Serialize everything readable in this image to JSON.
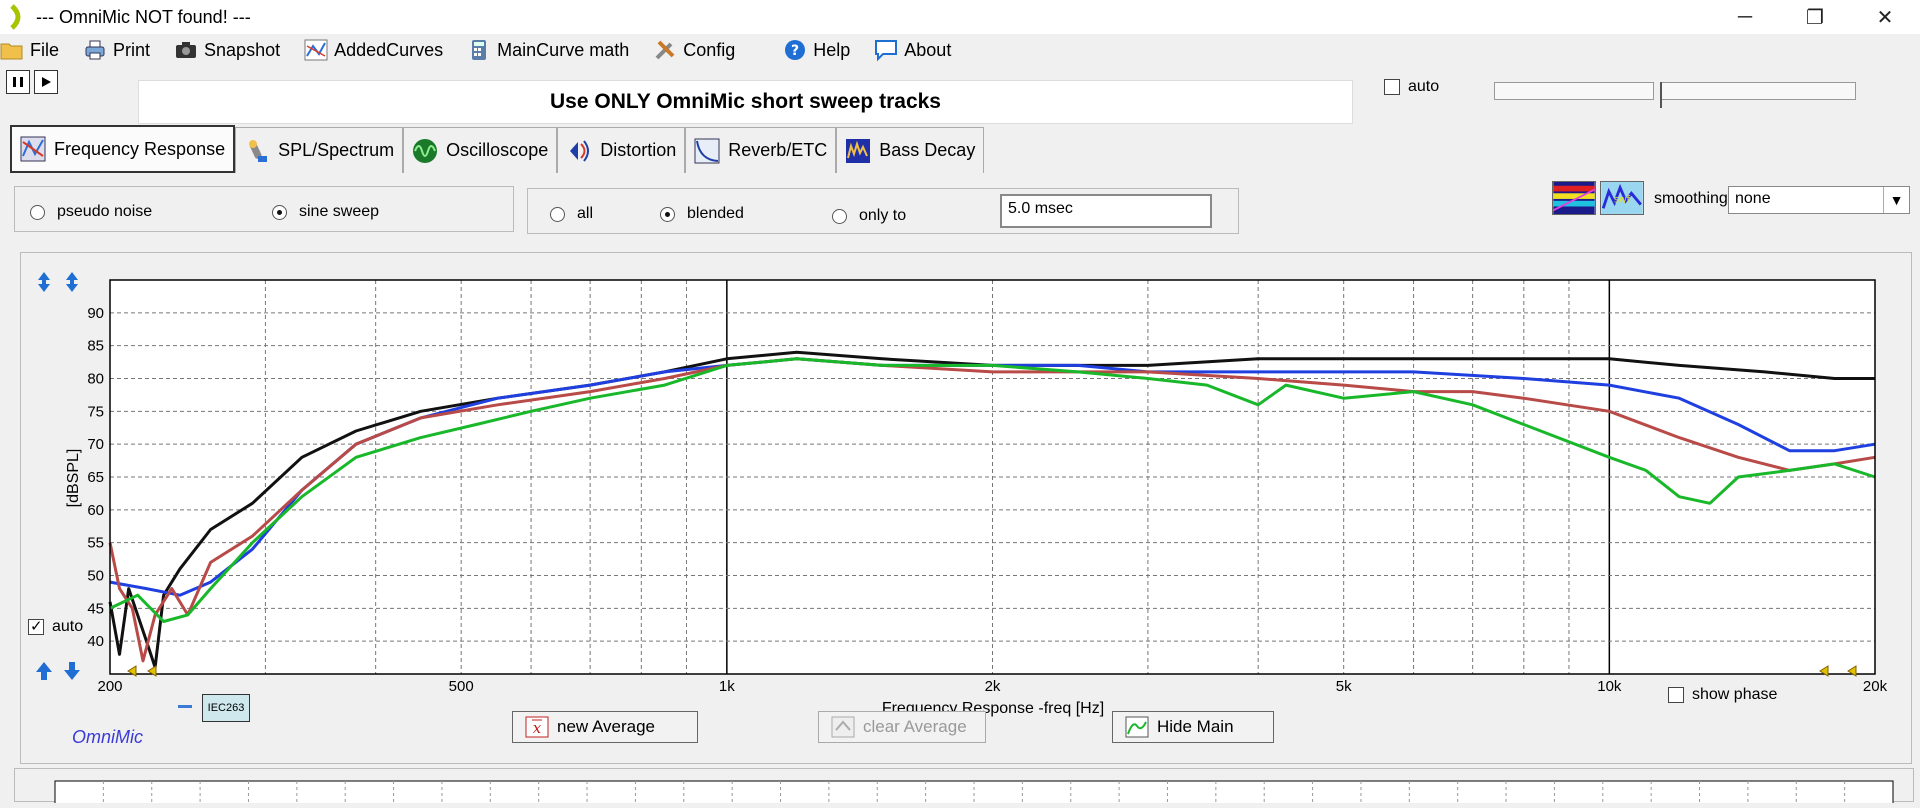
{
  "window": {
    "title": "--- OmniMic NOT found! ---",
    "minimize": "─",
    "restore": "❐",
    "close": "✕"
  },
  "menu": [
    {
      "label": "File",
      "icon": "folder-icon"
    },
    {
      "label": "Print",
      "icon": "printer-icon"
    },
    {
      "label": "Snapshot",
      "icon": "camera-icon"
    },
    {
      "label": "AddedCurves",
      "icon": "curves-icon"
    },
    {
      "label": "MainCurve math",
      "icon": "calculator-icon"
    },
    {
      "label": "Config",
      "icon": "tools-icon"
    },
    {
      "label": "Help",
      "icon": "help-icon"
    },
    {
      "label": "About",
      "icon": "speech-bubble-icon"
    }
  ],
  "message": "Use ONLY OmniMic short sweep tracks",
  "top_auto_label": "auto",
  "tabs": [
    {
      "label": "Frequency Response",
      "active": true
    },
    {
      "label": "SPL/Spectrum",
      "active": false
    },
    {
      "label": "Oscilloscope",
      "active": false
    },
    {
      "label": "Distortion",
      "active": false
    },
    {
      "label": "Reverb/ETC",
      "active": false
    },
    {
      "label": "Bass Decay",
      "active": false
    }
  ],
  "signal": {
    "pseudo_noise": "pseudo noise",
    "sine_sweep": "sine sweep",
    "selected": "sine sweep"
  },
  "window_mode": {
    "all": "all",
    "blended": "blended",
    "only_to": "only to",
    "selected": "blended",
    "time_value": "5.0 msec"
  },
  "smoothing": {
    "label": "smoothing",
    "value": "none"
  },
  "buttons": {
    "new_average": "new Average",
    "clear_average": "clear Average",
    "hide_main": "Hide Main"
  },
  "show_phase": "show phase",
  "plot_auto": "auto",
  "legend_tag": "IEC263",
  "brand": "OmniMic",
  "chart_data": {
    "type": "line",
    "xlabel": "Frequency Response -freq [Hz]",
    "ylabel": "[dBSPL]",
    "x_scale": "log",
    "xlim": [
      200,
      20000
    ],
    "ylim": [
      35,
      95
    ],
    "yticks": [
      40,
      45,
      50,
      55,
      60,
      65,
      70,
      75,
      80,
      85,
      90
    ],
    "xticks": [
      {
        "value": 200,
        "label": "200"
      },
      {
        "value": 500,
        "label": "500"
      },
      {
        "value": 1000,
        "label": "1k"
      },
      {
        "value": 2000,
        "label": "2k"
      },
      {
        "value": 5000,
        "label": "5k"
      },
      {
        "value": 10000,
        "label": "10k"
      },
      {
        "value": 20000,
        "label": "20k"
      }
    ],
    "grid": true,
    "series": [
      {
        "color": "#111111",
        "points": [
          [
            200,
            46
          ],
          [
            205,
            38
          ],
          [
            210,
            48
          ],
          [
            220,
            40
          ],
          [
            225,
            36
          ],
          [
            230,
            47
          ],
          [
            240,
            51
          ],
          [
            260,
            57
          ],
          [
            290,
            61
          ],
          [
            330,
            68
          ],
          [
            380,
            72
          ],
          [
            450,
            75
          ],
          [
            550,
            77
          ],
          [
            700,
            79
          ],
          [
            850,
            81
          ],
          [
            1000,
            83
          ],
          [
            1200,
            84
          ],
          [
            1500,
            83
          ],
          [
            2000,
            82
          ],
          [
            2500,
            82
          ],
          [
            3000,
            82
          ],
          [
            4000,
            83
          ],
          [
            5000,
            83
          ],
          [
            6000,
            83
          ],
          [
            8000,
            83
          ],
          [
            10000,
            83
          ],
          [
            12000,
            82
          ],
          [
            15000,
            81
          ],
          [
            18000,
            80
          ],
          [
            20000,
            80
          ]
        ]
      },
      {
        "color": "#1f3fe0",
        "points": [
          [
            200,
            49
          ],
          [
            220,
            48
          ],
          [
            240,
            47
          ],
          [
            260,
            49
          ],
          [
            290,
            54
          ],
          [
            330,
            63
          ],
          [
            380,
            70
          ],
          [
            450,
            74
          ],
          [
            550,
            77
          ],
          [
            700,
            79
          ],
          [
            850,
            81
          ],
          [
            1000,
            82
          ],
          [
            1200,
            83
          ],
          [
            1500,
            82
          ],
          [
            2000,
            82
          ],
          [
            2500,
            82
          ],
          [
            3000,
            81
          ],
          [
            4000,
            81
          ],
          [
            5000,
            81
          ],
          [
            6000,
            81
          ],
          [
            8000,
            80
          ],
          [
            10000,
            79
          ],
          [
            12000,
            77
          ],
          [
            14000,
            73
          ],
          [
            16000,
            69
          ],
          [
            18000,
            69
          ],
          [
            20000,
            70
          ]
        ]
      },
      {
        "color": "#b84a48",
        "points": [
          [
            200,
            55
          ],
          [
            205,
            48
          ],
          [
            212,
            45
          ],
          [
            218,
            37
          ],
          [
            225,
            44
          ],
          [
            235,
            48
          ],
          [
            245,
            44
          ],
          [
            260,
            52
          ],
          [
            290,
            56
          ],
          [
            330,
            63
          ],
          [
            380,
            70
          ],
          [
            450,
            74
          ],
          [
            550,
            76
          ],
          [
            700,
            78
          ],
          [
            850,
            80
          ],
          [
            1000,
            82
          ],
          [
            1200,
            83
          ],
          [
            1500,
            82
          ],
          [
            2000,
            81
          ],
          [
            2500,
            81
          ],
          [
            3000,
            81
          ],
          [
            4000,
            80
          ],
          [
            5000,
            79
          ],
          [
            6000,
            78
          ],
          [
            7000,
            78
          ],
          [
            8000,
            77
          ],
          [
            10000,
            75
          ],
          [
            12000,
            71
          ],
          [
            14000,
            68
          ],
          [
            16000,
            66
          ],
          [
            18000,
            67
          ],
          [
            20000,
            68
          ]
        ]
      },
      {
        "color": "#18b82a",
        "points": [
          [
            200,
            45
          ],
          [
            215,
            47
          ],
          [
            230,
            43
          ],
          [
            245,
            44
          ],
          [
            260,
            48
          ],
          [
            290,
            55
          ],
          [
            330,
            62
          ],
          [
            380,
            68
          ],
          [
            450,
            71
          ],
          [
            520,
            73
          ],
          [
            600,
            75
          ],
          [
            700,
            77
          ],
          [
            850,
            79
          ],
          [
            1000,
            82
          ],
          [
            1200,
            83
          ],
          [
            1500,
            82
          ],
          [
            2000,
            82
          ],
          [
            2500,
            81
          ],
          [
            3000,
            80
          ],
          [
            3500,
            79
          ],
          [
            4000,
            76
          ],
          [
            4300,
            79
          ],
          [
            5000,
            77
          ],
          [
            6000,
            78
          ],
          [
            7000,
            76
          ],
          [
            8000,
            73
          ],
          [
            10000,
            68
          ],
          [
            11000,
            66
          ],
          [
            12000,
            62
          ],
          [
            13000,
            61
          ],
          [
            14000,
            65
          ],
          [
            16000,
            66
          ],
          [
            18000,
            67
          ],
          [
            20000,
            65
          ]
        ]
      }
    ]
  }
}
